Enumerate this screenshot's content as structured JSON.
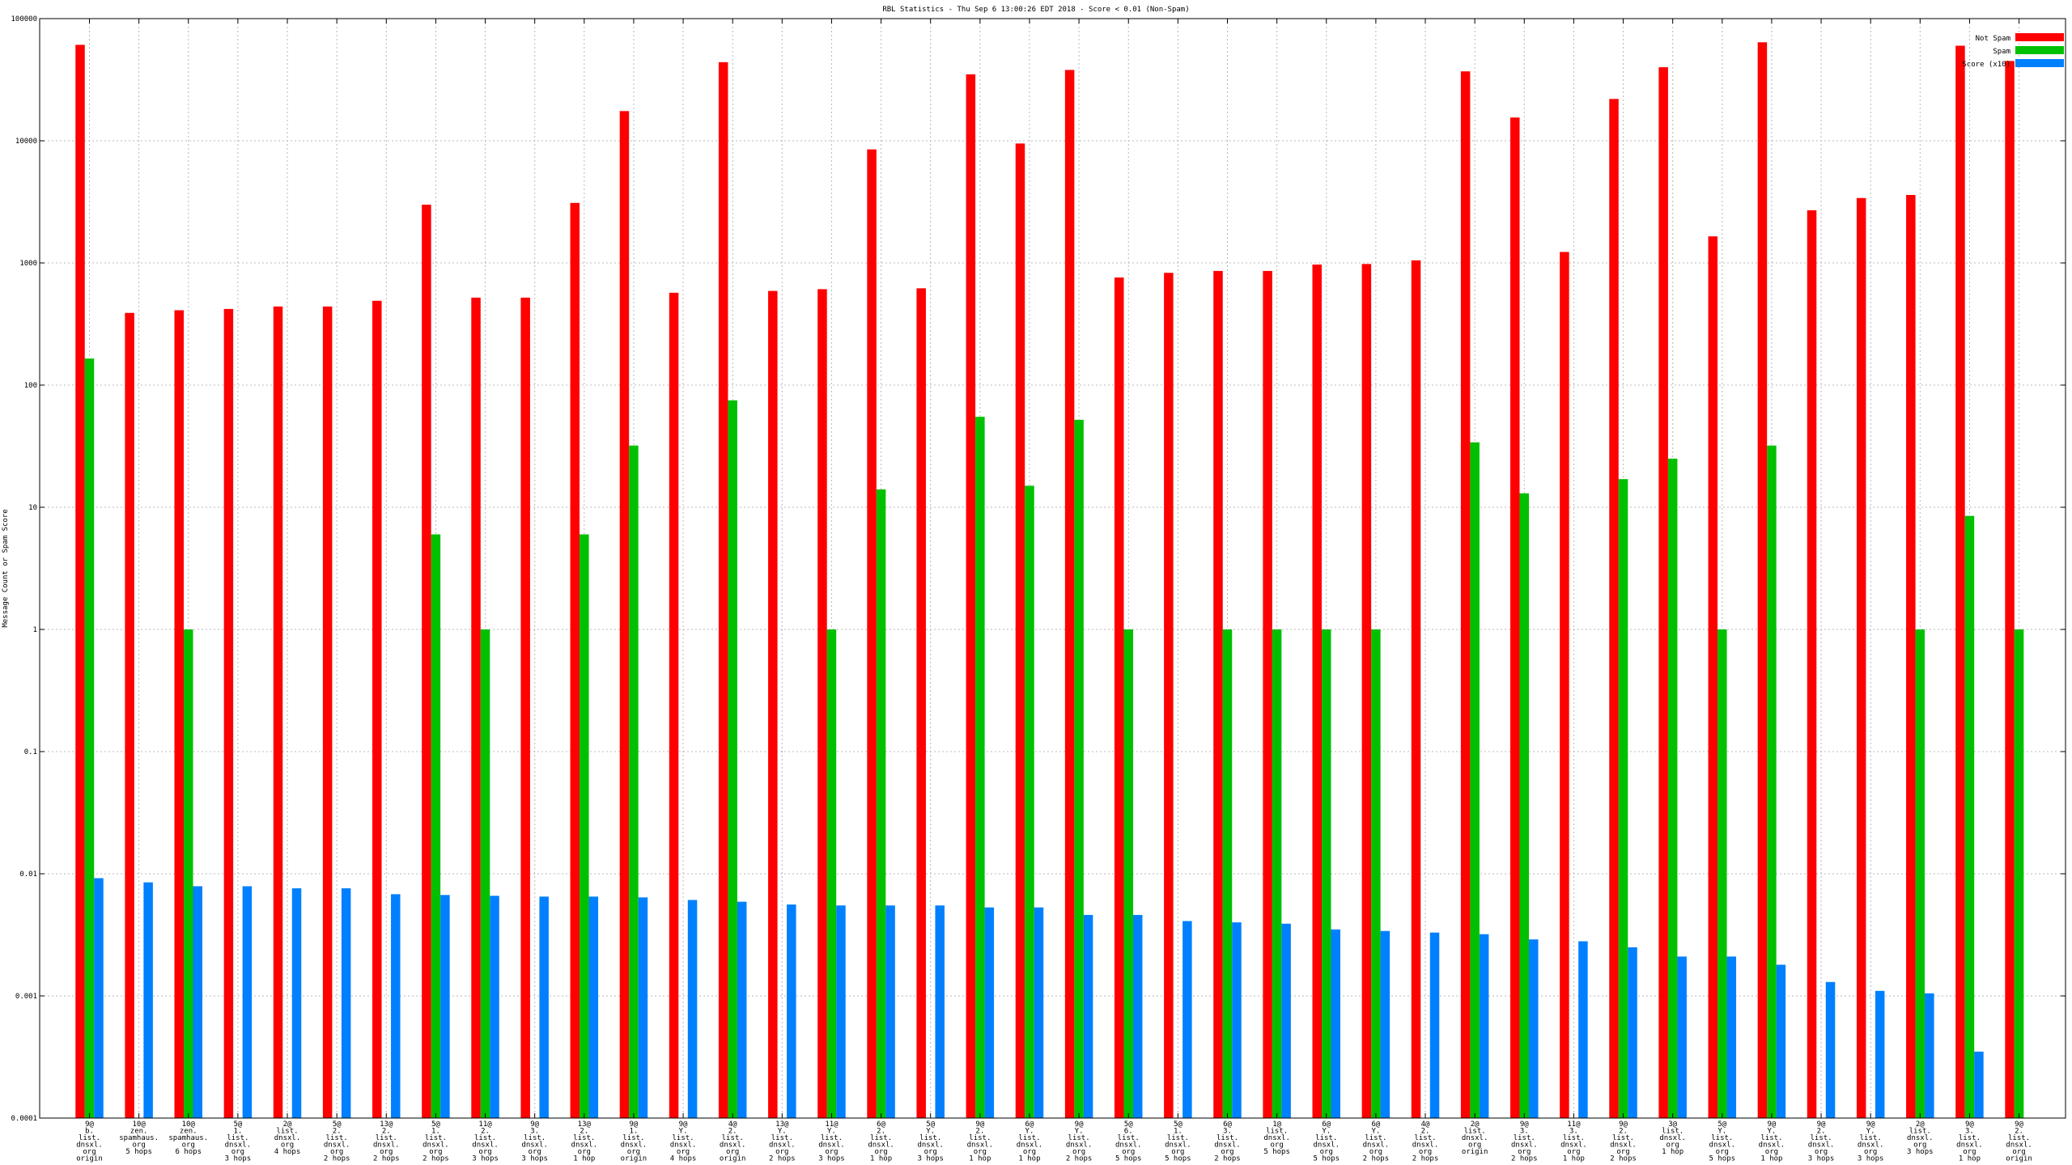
{
  "chart_data": {
    "type": "bar",
    "title": "RBL Statistics - Thu Sep  6 13:00:26 EDT 2018 - Score < 0.01 (Non-Spam)",
    "ylabel": "Message Count or Spam Score",
    "xlabel": "",
    "yscale": "log",
    "ylim": [
      0.0001,
      100000
    ],
    "grid": true,
    "legend_position": "top-right",
    "y_tick_labels": [
      "0.0001",
      "0.001",
      "0.01",
      "0.1",
      "1",
      "10",
      "100",
      "1000",
      "10000",
      "100000"
    ],
    "categories": [
      [
        "9@",
        "b.",
        "list.",
        "dnsxl.",
        "org",
        "origin"
      ],
      [
        "10@",
        "zen.",
        "spamhaus.",
        "org",
        "5 hops"
      ],
      [
        "10@",
        "zen.",
        "spamhaus.",
        "org",
        "6 hops"
      ],
      [
        "5@",
        "1.",
        "list.",
        "dnsxl.",
        "org",
        "3 hops"
      ],
      [
        "2@",
        "list.",
        "dnsxl.",
        "org",
        "4 hops"
      ],
      [
        "5@",
        "2.",
        "list.",
        "dnsxl.",
        "org",
        "2 hops"
      ],
      [
        "13@",
        "2.",
        "list.",
        "dnsxl.",
        "org",
        "2 hops"
      ],
      [
        "5@",
        "1.",
        "list.",
        "dnsxl.",
        "org",
        "2 hops"
      ],
      [
        "11@",
        "2.",
        "list.",
        "dnsxl.",
        "org",
        "3 hops"
      ],
      [
        "9@",
        "3.",
        "list.",
        "dnsxl.",
        "org",
        "3 hops"
      ],
      [
        "13@",
        "2.",
        "list.",
        "dnsxl.",
        "org",
        "1 hop"
      ],
      [
        "9@",
        "1.",
        "list.",
        "dnsxl.",
        "org",
        "origin"
      ],
      [
        "9@",
        "Y.",
        "list.",
        "dnsxl.",
        "org",
        "4 hops"
      ],
      [
        "4@",
        "2.",
        "list.",
        "dnsxl.",
        "org",
        "origin"
      ],
      [
        "13@",
        "Y.",
        "list.",
        "dnsxl.",
        "org",
        "2 hops"
      ],
      [
        "11@",
        "Y.",
        "list.",
        "dnsxl.",
        "org",
        "3 hops"
      ],
      [
        "6@",
        "2.",
        "list.",
        "dnsxl.",
        "org",
        "1 hop"
      ],
      [
        "5@",
        "Y.",
        "list.",
        "dnsxl.",
        "org",
        "3 hops"
      ],
      [
        "9@",
        "2.",
        "list.",
        "dnsxl.",
        "org",
        "1 hop"
      ],
      [
        "6@",
        "Y.",
        "list.",
        "dnsxl.",
        "org",
        "1 hop"
      ],
      [
        "9@",
        "Y.",
        "list.",
        "dnsxl.",
        "org",
        "2 hops"
      ],
      [
        "5@",
        "6.",
        "list.",
        "dnsxl.",
        "org",
        "5 hops"
      ],
      [
        "5@",
        "1.",
        "list.",
        "dnsxl.",
        "org",
        "5 hops"
      ],
      [
        "6@",
        "3.",
        "list.",
        "dnsxl.",
        "org",
        "2 hops"
      ],
      [
        "1@",
        "list.",
        "dnsxl.",
        "org",
        "5 hops"
      ],
      [
        "6@",
        "Y.",
        "list.",
        "dnsxl.",
        "org",
        "5 hops"
      ],
      [
        "6@",
        "Y.",
        "list.",
        "dnsxl.",
        "org",
        "2 hops"
      ],
      [
        "4@",
        "2.",
        "list.",
        "dnsxl.",
        "org",
        "2 hops"
      ],
      [
        "2@",
        "list.",
        "dnsxl.",
        "org",
        "origin"
      ],
      [
        "9@",
        "3.",
        "list.",
        "dnsxl.",
        "org",
        "2 hops"
      ],
      [
        "11@",
        "3.",
        "list.",
        "dnsxl.",
        "org",
        "1 hop"
      ],
      [
        "9@",
        "2.",
        "list.",
        "dnsxl.",
        "org",
        "2 hops"
      ],
      [
        "3@",
        "list.",
        "dnsxl.",
        "org",
        "1 hop"
      ],
      [
        "5@",
        "Y.",
        "list.",
        "dnsxl.",
        "org",
        "5 hops"
      ],
      [
        "9@",
        "Y.",
        "list.",
        "dnsxl.",
        "org",
        "1 hop"
      ],
      [
        "9@",
        "2.",
        "list.",
        "dnsxl.",
        "org",
        "3 hops"
      ],
      [
        "9@",
        "Y.",
        "list.",
        "dnsxl.",
        "org",
        "3 hops"
      ],
      [
        "2@",
        "list.",
        "dnsxl.",
        "org",
        "3 hops"
      ],
      [
        "9@",
        "3.",
        "list.",
        "dnsxl.",
        "org",
        "1 hop"
      ],
      [
        "9@",
        "2.",
        "list.",
        "dnsxl.",
        "org",
        "origin"
      ]
    ],
    "series": [
      {
        "name": "Not Spam",
        "color": "#ff0000",
        "values": [
          61000,
          390,
          410,
          420,
          440,
          440,
          490,
          3000,
          520,
          520,
          3100,
          17500,
          570,
          44000,
          590,
          610,
          8500,
          620,
          35000,
          9500,
          38000,
          760,
          830,
          860,
          860,
          970,
          980,
          1050,
          37000,
          15500,
          1230,
          22000,
          40000,
          1650,
          64000,
          2700,
          3400,
          3600,
          60000,
          45000
        ]
      },
      {
        "name": "Spam",
        "color": "#00c000",
        "values": [
          165,
          null,
          1,
          null,
          null,
          null,
          null,
          6,
          1,
          null,
          6,
          32,
          null,
          75,
          null,
          1,
          14,
          null,
          55,
          15,
          52,
          1,
          null,
          1,
          1,
          1,
          1,
          null,
          34,
          13,
          null,
          17,
          25,
          1,
          32,
          null,
          null,
          1,
          8.5,
          1
        ]
      },
      {
        "name": "Score (x10)",
        "color": "#0080ff",
        "values": [
          0.0092,
          0.0085,
          0.0079,
          0.0079,
          0.0076,
          0.0076,
          0.0068,
          0.0067,
          0.0066,
          0.0065,
          0.0065,
          0.0064,
          0.0061,
          0.0059,
          0.0056,
          0.0055,
          0.0055,
          0.0055,
          0.0053,
          0.0053,
          0.0046,
          0.0046,
          0.0041,
          0.004,
          0.0039,
          0.0035,
          0.0034,
          0.0033,
          0.0032,
          0.0029,
          0.0028,
          0.0025,
          0.0021,
          0.0021,
          0.0018,
          0.0013,
          0.0011,
          0.00105,
          0.00035,
          null
        ]
      }
    ]
  }
}
